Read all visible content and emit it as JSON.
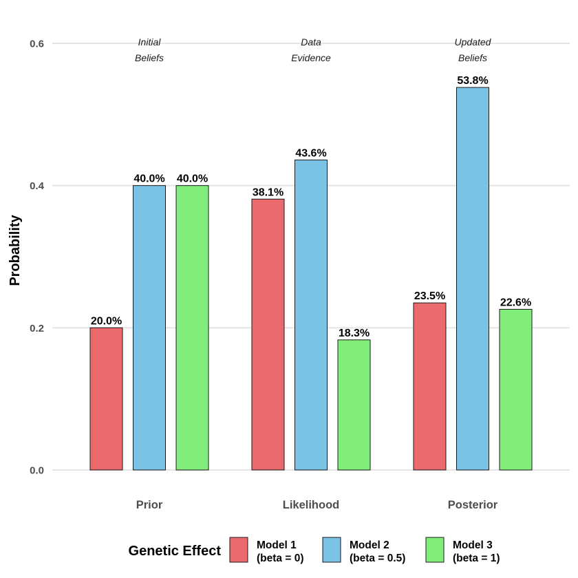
{
  "chart_data": {
    "type": "bar",
    "title": "",
    "xlabel": "",
    "ylabel": "Probability",
    "ylim": [
      0,
      0.62
    ],
    "yticks": [
      0.0,
      0.2,
      0.4,
      0.6
    ],
    "ytick_labels": [
      "0.0",
      "0.2",
      "0.4",
      "0.6"
    ],
    "grid": true,
    "categories": [
      "Prior",
      "Likelihood",
      "Posterior"
    ],
    "annotations": [
      {
        "category": "Prior",
        "lines": [
          "Initial",
          "Beliefs"
        ]
      },
      {
        "category": "Likelihood",
        "lines": [
          "Data",
          "Evidence"
        ]
      },
      {
        "category": "Posterior",
        "lines": [
          "Updated",
          "Beliefs"
        ]
      }
    ],
    "series": [
      {
        "name": "Model 1 (beta = 0)",
        "legend_lines": [
          "Model 1",
          "(beta = 0)"
        ],
        "color": "#EA6A6E",
        "values": [
          0.2,
          0.381,
          0.235
        ],
        "labels": [
          "20.0%",
          "38.1%",
          "23.5%"
        ]
      },
      {
        "name": "Model 2 (beta = 0.5)",
        "legend_lines": [
          "Model 2",
          "(beta = 0.5)"
        ],
        "color": "#7AC3E5",
        "values": [
          0.4,
          0.436,
          0.538
        ],
        "labels": [
          "40.0%",
          "43.6%",
          "53.8%"
        ]
      },
      {
        "name": "Model 3 (beta = 1)",
        "legend_lines": [
          "Model 3",
          "(beta = 1)"
        ],
        "color": "#82ED7B",
        "values": [
          0.4,
          0.183,
          0.226
        ],
        "labels": [
          "40.0%",
          "18.3%",
          "22.6%"
        ]
      }
    ],
    "legend": {
      "title": "Genetic Effect",
      "position": "bottom"
    }
  }
}
